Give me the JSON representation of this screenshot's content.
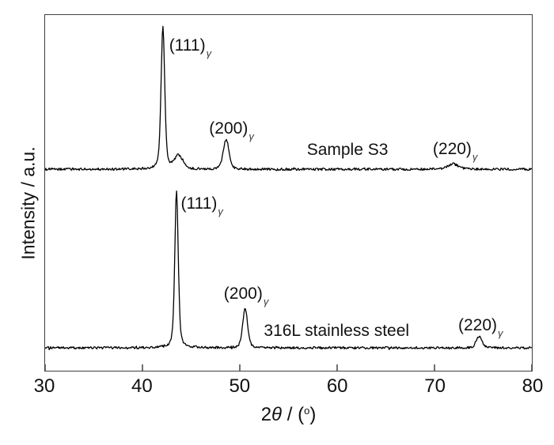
{
  "colors": {
    "background": "#ffffff",
    "axis": "#3f3f3f",
    "trace": "#000000",
    "text": "#111111"
  },
  "chart_data": {
    "type": "line",
    "title": "",
    "xlabel": "2θ / (°)",
    "xlabel_parts": [
      {
        "text": "2",
        "style": "normal"
      },
      {
        "text": "θ",
        "style": "italic"
      },
      {
        "text": " / (",
        "style": "normal"
      },
      {
        "text": "o",
        "style": "sup"
      },
      {
        "text": ")",
        "style": "normal"
      }
    ],
    "ylabel": "Intensity / a.u.",
    "xlim": [
      30,
      80
    ],
    "x_ticks": [
      30,
      40,
      50,
      60,
      70,
      80
    ],
    "ylim_au": [
      0,
      452
    ],
    "grid": false,
    "legend": "none",
    "series": [
      {
        "name": "Sample S3",
        "baseline_au": 256,
        "noise_amp_au": 1.5,
        "peaks": [
          {
            "hkl": "(111)",
            "phase": "γ",
            "two_theta_deg": 42.1,
            "height_au": 180,
            "fwhm_deg": 0.45,
            "lorentz_frac": 0.4
          },
          {
            "hkl": "",
            "phase": "",
            "two_theta_deg": 43.7,
            "height_au": 17,
            "fwhm_deg": 1.0,
            "lorentz_frac": 0.3
          },
          {
            "hkl": "(200)",
            "phase": "γ",
            "two_theta_deg": 48.6,
            "height_au": 38,
            "fwhm_deg": 0.7,
            "lorentz_frac": 0.3
          },
          {
            "hkl": "(220)",
            "phase": "γ",
            "two_theta_deg": 71.9,
            "height_au": 7,
            "fwhm_deg": 1.2,
            "lorentz_frac": 0.3
          }
        ]
      },
      {
        "name": "316L stainless steel",
        "baseline_au": 29,
        "noise_amp_au": 1.5,
        "peaks": [
          {
            "hkl": "(111)",
            "phase": "γ",
            "two_theta_deg": 43.5,
            "height_au": 200,
            "fwhm_deg": 0.42,
            "lorentz_frac": 0.45
          },
          {
            "hkl": "(200)",
            "phase": "γ",
            "two_theta_deg": 50.55,
            "height_au": 50,
            "fwhm_deg": 0.6,
            "lorentz_frac": 0.35
          },
          {
            "hkl": "(220)",
            "phase": "γ",
            "two_theta_deg": 74.6,
            "height_au": 15,
            "fwhm_deg": 0.7,
            "lorentz_frac": 0.3
          }
        ]
      }
    ],
    "annotations": [
      {
        "kind": "peak-label-111-s3",
        "text": "(111)",
        "sub": "γ",
        "x_deg": 42.7,
        "y_top_au": 424
      },
      {
        "kind": "peak-label-200-s3",
        "text": "(200)",
        "sub": "γ",
        "x_deg": 46.8,
        "y_top_au": 319
      },
      {
        "kind": "series-label-s3",
        "text": "Sample S3",
        "sub": "",
        "x_deg": 56.8,
        "y_top_au": 292
      },
      {
        "kind": "peak-label-220-s3",
        "text": "(220)",
        "sub": "γ",
        "x_deg": 69.7,
        "y_top_au": 293
      },
      {
        "kind": "peak-label-111-316l",
        "text": "(111)",
        "sub": "γ",
        "x_deg": 43.9,
        "y_top_au": 224
      },
      {
        "kind": "peak-label-200-316l",
        "text": "(200)",
        "sub": "γ",
        "x_deg": 48.3,
        "y_top_au": 110
      },
      {
        "kind": "series-label-316l",
        "text": "316L stainless steel",
        "sub": "",
        "x_deg": 52.4,
        "y_top_au": 63
      },
      {
        "kind": "peak-label-220-316l",
        "text": "(220)",
        "sub": "γ",
        "x_deg": 72.3,
        "y_top_au": 70
      }
    ]
  }
}
